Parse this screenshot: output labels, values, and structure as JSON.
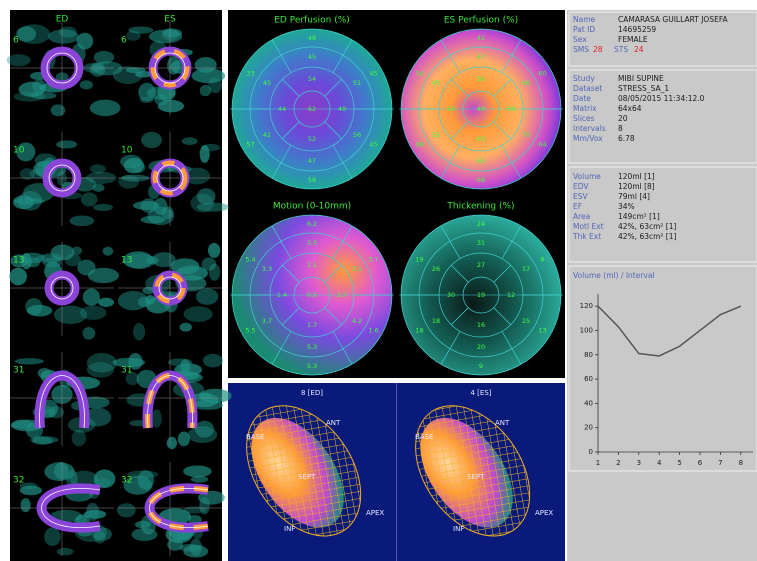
{
  "left_panel": {
    "column_labels": [
      "ED",
      "ES"
    ],
    "slice_numbers": [
      "6",
      "10",
      "13",
      "31",
      "32"
    ]
  },
  "polar_maps": [
    {
      "title": "ED Perfusion (%)",
      "segments": [
        48,
        45,
        45,
        58,
        57,
        33,
        45,
        51,
        56,
        47,
        42,
        45,
        54,
        48,
        52,
        44,
        62
      ]
    },
    {
      "title": "ES Perfusion (%)",
      "segments": [
        41,
        60,
        64,
        66,
        68,
        54,
        47,
        66,
        70,
        65,
        55,
        45,
        56,
        58,
        63,
        53,
        49
      ]
    },
    {
      "title": "Motion (0-10mm)",
      "segments": [
        6.2,
        3.7,
        1.6,
        5.3,
        5.5,
        5.4,
        3.3,
        3.1,
        4.2,
        5.3,
        3.7,
        3.3,
        2.1,
        2.7,
        1.7,
        1.4,
        0.5
      ]
    },
    {
      "title": "Thickening (%)",
      "segments": [
        24,
        8,
        13,
        9,
        18,
        19,
        31,
        17,
        25,
        20,
        18,
        26,
        27,
        12,
        16,
        30,
        19
      ]
    }
  ],
  "views_3d": [
    {
      "title": "8 [ED]",
      "labels": [
        "BASE",
        "ANT",
        "SEPT",
        "INF",
        "APEX"
      ]
    },
    {
      "title": "4 [ES]",
      "labels": [
        "BASE",
        "ANT",
        "SEPT",
        "INF",
        "APEX"
      ]
    }
  ],
  "patient": {
    "rows": [
      [
        "Name",
        "CAMARASA GUILLART JOSEFA"
      ],
      [
        "Pat ID",
        "14695259"
      ],
      [
        "Sex",
        "FEMALE"
      ]
    ],
    "sms_label": "SMS",
    "sms_value": "28",
    "sts_label": "STS",
    "sts_value": "24"
  },
  "study": {
    "rows": [
      [
        "Study",
        "MIBI SUPINE"
      ],
      [
        "Dataset",
        "STRESS_SA_1"
      ],
      [
        "Date",
        "08/05/2015 11:34:12.0"
      ],
      [
        "Matrix",
        "64x64"
      ],
      [
        "Slices",
        "20"
      ],
      [
        "Intervals",
        "8"
      ],
      [
        "Mm/Vox",
        "6.78"
      ]
    ]
  },
  "results": {
    "rows": [
      [
        "Volume",
        "120ml [1]"
      ],
      [
        "EDV",
        "120ml [8]"
      ],
      [
        "ESV",
        "79ml [4]"
      ],
      [
        "EF",
        "34%"
      ],
      [
        "Area",
        "149cm² [1]"
      ],
      [
        "Motl Ext",
        "42%, 63cm² [1]"
      ],
      [
        "Thk Ext",
        "42%, 63cm² [1]"
      ]
    ]
  },
  "chart_data": {
    "type": "line",
    "title": "Volume (ml) / Interval",
    "x": [
      1,
      2,
      3,
      4,
      5,
      6,
      7,
      8
    ],
    "values": [
      120,
      103,
      81,
      79,
      87,
      100,
      113,
      120
    ],
    "color": "#555555",
    "xlim": [
      1,
      8.6
    ],
    "xticks": [
      1,
      2,
      3,
      4,
      5,
      6,
      7,
      8
    ],
    "ylim": [
      0,
      130
    ],
    "yticks": [
      0,
      20,
      40,
      60,
      80,
      100,
      120
    ]
  }
}
